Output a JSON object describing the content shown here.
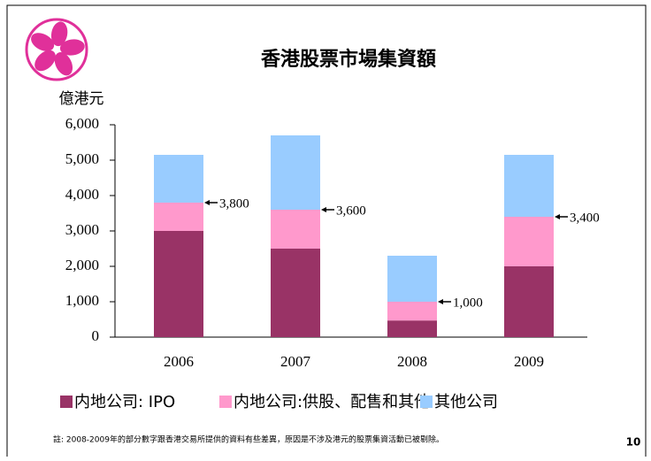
{
  "chart_data": {
    "type": "stacked_bar",
    "title": "香港股票市場集資額",
    "y_axis_label": "億港元",
    "categories": [
      "2006",
      "2007",
      "2008",
      "2009"
    ],
    "series": [
      {
        "name": "内地公司: IPO",
        "color": "#993366",
        "values": [
          3000,
          2500,
          470,
          2000
        ]
      },
      {
        "name": "内地公司:供股、配售和其他",
        "color": "#ff99cc",
        "values": [
          800,
          1100,
          530,
          1400
        ]
      },
      {
        "name": "其他公司",
        "color": "#99ccff",
        "values": [
          1350,
          2100,
          1300,
          1750
        ]
      }
    ],
    "annotations": [
      "3,800",
      "3,600",
      "1,000",
      "3,400"
    ],
    "ylim": [
      0,
      6000
    ],
    "yticks": [
      0,
      {
        "value": 1000,
        "label": "1,000"
      },
      {
        "value": 2000,
        "label": "2,000"
      },
      {
        "value": 3000,
        "label": "3,000"
      },
      {
        "value": 4000,
        "label": "4,000"
      },
      {
        "value": 5000,
        "label": "5,000"
      },
      {
        "value": 6000,
        "label": "6,000"
      }
    ],
    "grid": false,
    "footnote": "註: 2008-2009年的部分數字跟香港交易所提供的資料有些差異，原因是不涉及港元的股票集資活動已被剔除。",
    "page_number": "10"
  }
}
